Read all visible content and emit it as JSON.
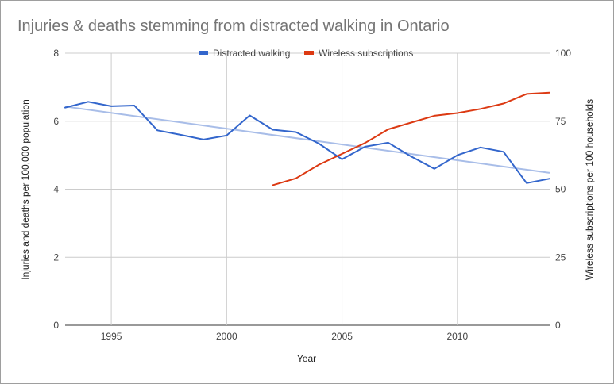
{
  "chart_data": {
    "type": "line",
    "title": "Injuries & deaths stemming from distracted walking in Ontario",
    "xlabel": "Year",
    "ylabel_left": "Injuries and deaths per 100,000 population",
    "ylabel_right": "Wireless subscriptions per 100 households",
    "xlim": [
      1993,
      2014
    ],
    "ylim_left": [
      0,
      8
    ],
    "ylim_right": [
      0,
      100
    ],
    "x_ticks": [
      1995,
      2000,
      2005,
      2010
    ],
    "y_ticks_left": [
      0,
      2,
      4,
      6,
      8
    ],
    "y_ticks_right": [
      0,
      25,
      50,
      75,
      100
    ],
    "grid": true,
    "legend_position": "top",
    "series": [
      {
        "name": "Distracted walking",
        "axis": "left",
        "color": "#3366cc",
        "x": [
          1993,
          1994,
          1995,
          1996,
          1997,
          1998,
          1999,
          2000,
          2001,
          2002,
          2003,
          2004,
          2005,
          2006,
          2007,
          2008,
          2009,
          2010,
          2011,
          2012,
          2013,
          2014
        ],
        "y": [
          6.4,
          6.57,
          6.44,
          6.46,
          5.73,
          5.6,
          5.46,
          5.58,
          6.17,
          5.75,
          5.68,
          5.34,
          4.88,
          5.25,
          5.37,
          4.96,
          4.6,
          5.0,
          5.23,
          5.1,
          4.18,
          4.31
        ]
      },
      {
        "name": "Wireless subscriptions",
        "axis": "right",
        "color": "#dc3912",
        "x": [
          2002,
          2003,
          2004,
          2005,
          2006,
          2007,
          2008,
          2009,
          2010,
          2011,
          2012,
          2013,
          2014
        ],
        "y": [
          51.5,
          54,
          59,
          63,
          67,
          72,
          74.5,
          77,
          78,
          79.5,
          81.5,
          85,
          85.5
        ]
      }
    ],
    "trendline": {
      "series": "Distracted walking",
      "color": "#a8bde8",
      "x": [
        1993,
        2014
      ],
      "y": [
        6.43,
        4.48
      ]
    }
  }
}
